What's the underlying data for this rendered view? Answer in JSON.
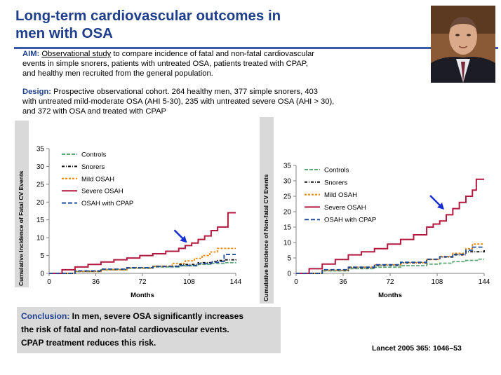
{
  "slide": {
    "title_line1": "Long-term cardiovascular outcomes in",
    "title_line2": "men with OSA",
    "aim_label": "AIM:",
    "aim_underlined": "Observational study",
    "aim_line1_rest": " to compare incidence of fatal and non-fatal cardiovascular",
    "aim_line2": "events in simple snorers, patients with untreated OSA, patients treated with CPAP,",
    "aim_line3": "and healthy men recruited from the general population.",
    "design_label": "Design:",
    "design_line1_rest": " Prospective observational cohort.  264 healthy men, 377 simple snorers, 403",
    "design_line2": " with untreated mild-moderate OSA (AHI 5-30), 235 with untreated severe OSA (AHI > 30),",
    "design_line3": " and 372 with OSA and treated with CPAP",
    "conclusion_label": "Conclusion:",
    "conclusion_line1_rest": "  In men, severe OSA significantly increases",
    "conclusion_line2": "the risk of fatal and non-fatal cardiovascular  events.",
    "conclusion_line3": "CPAP treatment reduces this risk.",
    "reference": "Lancet 2005 365: 1046–53"
  },
  "colors": {
    "controls": "#5fa87a",
    "snorers": "#111111",
    "mild": "#e8890c",
    "severe": "#b3183e",
    "cpap": "#1f4f9c",
    "arrow": "#1a2fd0"
  },
  "chart_data": [
    {
      "type": "line",
      "ylabel": "Cumulative Incidence of Fatal CV Events",
      "xlabel": "Months",
      "xlim": [
        0,
        144
      ],
      "ylim": [
        0,
        35
      ],
      "xticks": [
        0,
        36,
        72,
        108,
        144
      ],
      "yticks": [
        0,
        5,
        10,
        15,
        20,
        25,
        30,
        35
      ],
      "legend_position": "top-left",
      "arrow_target": {
        "x": 108,
        "y": 8
      },
      "series": [
        {
          "name": "Controls",
          "style": "controls",
          "x": [
            0,
            20,
            40,
            60,
            80,
            100,
            115,
            125,
            135,
            144
          ],
          "y": [
            0,
            0.5,
            1,
            1.4,
            1.8,
            2.1,
            2.5,
            2.8,
            3,
            3.1
          ]
        },
        {
          "name": "Snorers",
          "style": "snorers",
          "x": [
            0,
            20,
            40,
            60,
            80,
            100,
            115,
            125,
            130,
            135,
            144
          ],
          "y": [
            0,
            0.6,
            1.1,
            1.6,
            2,
            2.5,
            3,
            3.3,
            3.6,
            3.8,
            3.9
          ]
        },
        {
          "name": "Mild OSAH",
          "style": "mild",
          "x": [
            0,
            20,
            40,
            60,
            80,
            95,
            105,
            112,
            118,
            124,
            130,
            144
          ],
          "y": [
            0,
            0.5,
            1,
            1.5,
            2,
            2.8,
            3.5,
            4.2,
            5,
            6,
            7,
            7
          ]
        },
        {
          "name": "Severe OSAH",
          "style": "severe",
          "x": [
            0,
            10,
            20,
            30,
            40,
            50,
            60,
            70,
            80,
            90,
            100,
            105,
            110,
            115,
            120,
            125,
            130,
            138,
            144
          ],
          "y": [
            0,
            1,
            1.8,
            2.5,
            3.2,
            3.8,
            4.3,
            5,
            5.5,
            6.2,
            7,
            7.8,
            8.5,
            9.5,
            10.5,
            12,
            13,
            17,
            17
          ]
        },
        {
          "name": "OSAH with CPAP",
          "style": "cpap",
          "x": [
            0,
            20,
            40,
            60,
            80,
            100,
            115,
            125,
            132,
            135,
            144
          ],
          "y": [
            0,
            0.7,
            1.2,
            1.6,
            1.9,
            2.2,
            2.7,
            3.1,
            3.3,
            5.3,
            5.3
          ]
        }
      ]
    },
    {
      "type": "line",
      "ylabel": "Cumulative Incidence of Non-fatal CV Events",
      "xlabel": "Months",
      "xlim": [
        0,
        144
      ],
      "ylim": [
        0,
        35
      ],
      "xticks": [
        0,
        36,
        72,
        108,
        144
      ],
      "yticks": [
        0,
        5,
        10,
        15,
        20,
        25,
        30,
        35
      ],
      "legend_position": "top-left",
      "arrow_target": {
        "x": 115,
        "y": 20
      },
      "series": [
        {
          "name": "Controls",
          "style": "controls",
          "x": [
            0,
            20,
            40,
            60,
            80,
            100,
            110,
            120,
            130,
            140,
            144
          ],
          "y": [
            0,
            0.8,
            1.5,
            2,
            2.5,
            3,
            3.3,
            3.8,
            4.2,
            4.6,
            4.6
          ]
        },
        {
          "name": "Snorers",
          "style": "snorers",
          "x": [
            0,
            20,
            40,
            60,
            80,
            100,
            110,
            120,
            130,
            144
          ],
          "y": [
            0,
            1,
            1.8,
            2.6,
            3.4,
            4.5,
            5.3,
            6,
            7,
            7.5
          ]
        },
        {
          "name": "Mild OSAH",
          "style": "mild",
          "x": [
            0,
            20,
            40,
            60,
            80,
            100,
            110,
            120,
            130,
            135,
            144
          ],
          "y": [
            0,
            1,
            2,
            2.8,
            3.5,
            4.5,
            5.5,
            6.5,
            8,
            9.5,
            9.5
          ]
        },
        {
          "name": "Severe OSAH",
          "style": "severe",
          "x": [
            0,
            10,
            20,
            30,
            40,
            50,
            60,
            70,
            80,
            90,
            100,
            105,
            110,
            115,
            120,
            125,
            130,
            135,
            138,
            144
          ],
          "y": [
            0,
            1.5,
            3,
            4.5,
            6,
            7,
            8,
            9.5,
            11,
            12.5,
            15,
            16,
            17,
            19,
            21,
            23,
            25,
            27,
            30.5,
            30.5
          ]
        },
        {
          "name": "OSAH with CPAP",
          "style": "cpap",
          "x": [
            0,
            20,
            40,
            60,
            80,
            100,
            110,
            120,
            130,
            135,
            144
          ],
          "y": [
            0,
            1.2,
            2,
            2.8,
            3.6,
            4.6,
            5.4,
            6.2,
            7.5,
            8.5,
            8.5
          ]
        }
      ]
    }
  ]
}
